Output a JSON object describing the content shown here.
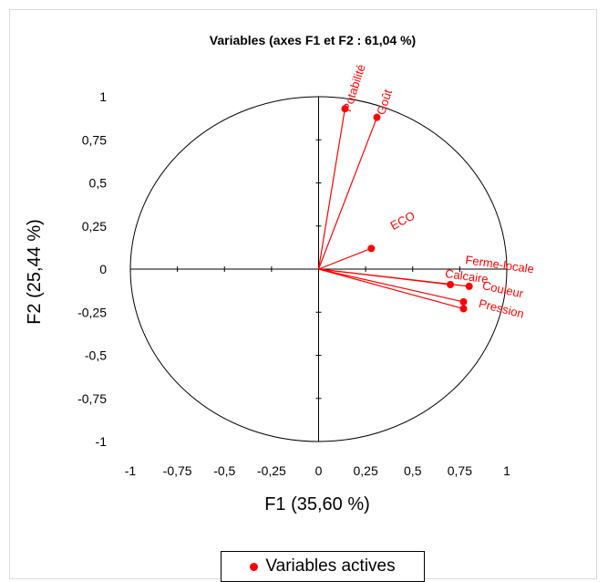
{
  "chart_data": {
    "type": "scatter",
    "title": "Variables (axes F1 et F2 : 61,04 %)",
    "xlabel": "F1 (35,60 %)",
    "ylabel": "F2 (25,44 %)",
    "xlim": [
      -1,
      1
    ],
    "ylim": [
      -1,
      1
    ],
    "x_ticks": [
      "-1",
      "-0,75",
      "-0,5",
      "-0,25",
      "0",
      "0,25",
      "0,5",
      "0,75",
      "1"
    ],
    "y_ticks": [
      "1",
      "0,75",
      "0,5",
      "0,25",
      "0",
      "-0,25",
      "-0,5",
      "-0,75",
      "-1"
    ],
    "grid": false,
    "unit_circle": true,
    "vectors_from_origin": true,
    "legend_position": "bottom",
    "series": [
      {
        "name": "Variables actives",
        "color": "#ff0000",
        "points": [
          {
            "label": "Potabilité",
            "x": 0.14,
            "y": 0.93
          },
          {
            "label": "Goût",
            "x": 0.31,
            "y": 0.88
          },
          {
            "label": "ECO",
            "x": 0.28,
            "y": 0.12
          },
          {
            "label": "Calcaire",
            "x": 0.8,
            "y": -0.1
          },
          {
            "label": "Ferme-locale",
            "x": 0.7,
            "y": -0.09
          },
          {
            "label": "Couleur",
            "x": 0.77,
            "y": -0.19
          },
          {
            "label": "Pression",
            "x": 0.77,
            "y": -0.23
          }
        ]
      }
    ]
  },
  "legend": {
    "label": "Variables actives"
  }
}
